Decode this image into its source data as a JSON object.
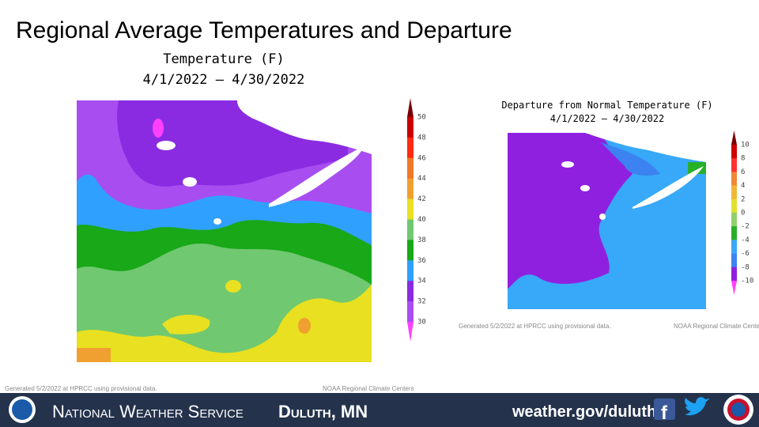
{
  "title": "Regional Average Temperatures and Departure",
  "left_map": {
    "title": "Temperature (F)",
    "date_range": "4/1/2022 – 4/30/2022",
    "legend": {
      "labels": [
        50,
        48,
        46,
        44,
        42,
        40,
        38,
        36,
        34,
        32,
        30
      ],
      "colors": [
        "#7a0000",
        "#c80000",
        "#ff2a10",
        "#f07828",
        "#f0a030",
        "#e8e020",
        "#70c870",
        "#18a818",
        "#30a0ff",
        "#8a2be2",
        "#a84ef0",
        "#ff40ff"
      ]
    },
    "generated": "Generated 5/2/2022 at HPRCC using provisional data.",
    "source": "NOAA Regional Climate Centers"
  },
  "right_map": {
    "title": "Departure from Normal Temperature (F)",
    "date_range": "4/1/2022 – 4/30/2022",
    "legend": {
      "labels": [
        10,
        8,
        6,
        4,
        2,
        0,
        -2,
        -4,
        -6,
        -8,
        -10
      ],
      "colors": [
        "#7a0000",
        "#d00000",
        "#ff3030",
        "#f08838",
        "#f0b838",
        "#e0e030",
        "#90d070",
        "#28b028",
        "#38a8f8",
        "#3c82f0",
        "#9020e0",
        "#ff40ff"
      ]
    },
    "generated": "Generated 5/2/2022 at HPRCC using provisional data.",
    "source": "NOAA Regional Climate Centers"
  },
  "footer_bar": {
    "agency": "National Weather Service",
    "office": "Duluth, MN",
    "website": "weather.gov/duluth"
  }
}
